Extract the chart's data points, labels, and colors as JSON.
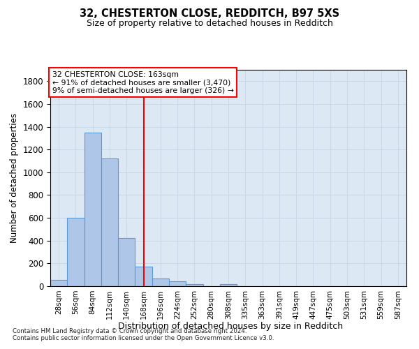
{
  "title_line1": "32, CHESTERTON CLOSE, REDDITCH, B97 5XS",
  "title_line2": "Size of property relative to detached houses in Redditch",
  "xlabel": "Distribution of detached houses by size in Redditch",
  "ylabel": "Number of detached properties",
  "bar_labels": [
    "28sqm",
    "56sqm",
    "84sqm",
    "112sqm",
    "140sqm",
    "168sqm",
    "196sqm",
    "224sqm",
    "252sqm",
    "280sqm",
    "308sqm",
    "335sqm",
    "363sqm",
    "391sqm",
    "419sqm",
    "447sqm",
    "475sqm",
    "503sqm",
    "531sqm",
    "559sqm",
    "587sqm"
  ],
  "bar_heights": [
    55,
    600,
    1350,
    1120,
    420,
    170,
    65,
    40,
    20,
    0,
    20,
    0,
    0,
    0,
    0,
    0,
    0,
    0,
    0,
    0,
    0
  ],
  "bar_color": "#aec6e8",
  "bar_edgecolor": "#5b9bd5",
  "vline_position": 5.0,
  "vline_color": "red",
  "ylim": [
    0,
    1900
  ],
  "yticks": [
    0,
    200,
    400,
    600,
    800,
    1000,
    1200,
    1400,
    1600,
    1800
  ],
  "annotation_title": "32 CHESTERTON CLOSE: 163sqm",
  "annotation_line1": "← 91% of detached houses are smaller (3,470)",
  "annotation_line2": "9% of semi-detached houses are larger (326) →",
  "annotation_box_color": "white",
  "annotation_box_edgecolor": "red",
  "grid_color": "#c8d8e8",
  "background_color": "#dce8f4",
  "footnote1": "Contains HM Land Registry data © Crown copyright and database right 2024.",
  "footnote2": "Contains public sector information licensed under the Open Government Licence v3.0."
}
